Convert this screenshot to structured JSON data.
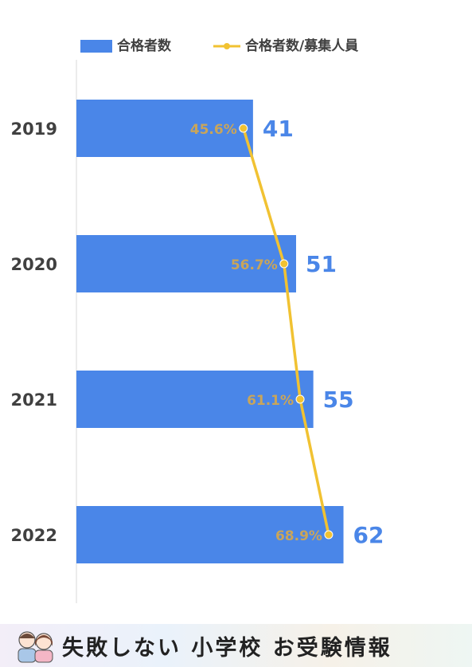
{
  "chart_data": {
    "type": "bar",
    "orientation": "horizontal",
    "categories": [
      "2019",
      "2020",
      "2021",
      "2022"
    ],
    "series": [
      {
        "name": "合格者数",
        "type": "bar",
        "values": [
          41,
          51,
          55,
          62
        ],
        "labels": [
          "41",
          "51",
          "55",
          "62"
        ],
        "color": "#4a86e8"
      },
      {
        "name": "合格者数/募集人員",
        "type": "line",
        "values": [
          45.6,
          56.7,
          61.1,
          68.9
        ],
        "labels": [
          "45.6%",
          "56.7%",
          "61.1%",
          "68.9%"
        ],
        "color": "#f1c232"
      }
    ],
    "bar_axis_range": [
      0,
      85
    ],
    "line_axis_range": [
      0,
      100
    ],
    "legend_position": "top",
    "grid": false,
    "bar_label_color": "#4a86e8",
    "line_label_color": "#c9a55a"
  },
  "footer": {
    "title": "失敗しない 小学校 お受験情報"
  }
}
